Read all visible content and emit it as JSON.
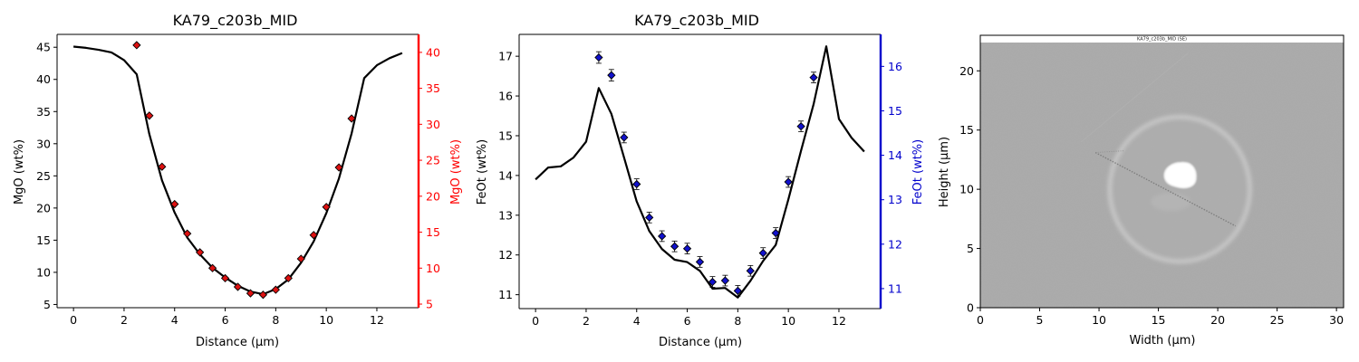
{
  "chart_data": [
    {
      "type": "line+scatter",
      "title": "KA79_c203b_MID",
      "xlabel": "Distance (µm)",
      "ylabel_left": "MgO (wt%)",
      "ylabel_right": "MgO (wt%)",
      "xlim": [
        -0.65,
        13.65
      ],
      "ylim_left": [
        4.5,
        47.0
      ],
      "ylim_right": [
        4.5,
        42.5
      ],
      "x_ticks": [
        0,
        2,
        4,
        6,
        8,
        10,
        12
      ],
      "y_ticks_left": [
        5,
        10,
        15,
        20,
        25,
        30,
        35,
        40,
        45
      ],
      "y_ticks_right": [
        5,
        10,
        15,
        20,
        25,
        30,
        35,
        40
      ],
      "right_axis_color": "#ff0000",
      "marker_color": "#dd1111",
      "series": [
        {
          "axis": "left",
          "style": "line",
          "x": [
            0,
            0.5,
            1,
            1.5,
            2,
            2.5,
            3,
            3.5,
            4,
            4.5,
            5,
            5.5,
            6,
            6.5,
            7,
            7.5,
            8,
            8.5,
            9,
            9.5,
            10,
            10.5,
            11,
            11.5,
            12,
            12.5,
            13
          ],
          "y": [
            45.1,
            44.9,
            44.6,
            44.2,
            43.0,
            40.8,
            31.5,
            24.3,
            19.3,
            15.4,
            12.8,
            10.7,
            9.2,
            7.9,
            7.0,
            6.6,
            7.4,
            8.9,
            11.5,
            14.8,
            19.2,
            24.6,
            31.6,
            40.2,
            42.2,
            43.3,
            44.1
          ]
        },
        {
          "axis": "right",
          "style": "markers",
          "x": [
            2.5,
            3,
            3.5,
            4,
            4.5,
            5,
            5.5,
            6,
            6.5,
            7,
            7.5,
            8,
            8.5,
            9,
            9.5,
            10,
            10.5,
            11
          ],
          "y": [
            41.0,
            31.2,
            24.1,
            18.9,
            14.8,
            12.2,
            10.0,
            8.6,
            7.4,
            6.5,
            6.3,
            7.0,
            8.6,
            11.3,
            14.6,
            18.5,
            24.0,
            30.8
          ]
        }
      ]
    },
    {
      "type": "line+scatter",
      "title": "KA79_c203b_MID",
      "xlabel": "Distance (µm)",
      "ylabel_left": "FeOt (wt%)",
      "ylabel_right": "FeOt (wt%)",
      "xlim": [
        -0.65,
        13.65
      ],
      "ylim_left": [
        10.65,
        17.55
      ],
      "ylim_right": [
        10.55,
        16.72
      ],
      "x_ticks": [
        0,
        2,
        4,
        6,
        8,
        10,
        12
      ],
      "y_ticks_left": [
        11,
        12,
        13,
        14,
        15,
        16,
        17
      ],
      "y_ticks_right": [
        11,
        12,
        13,
        14,
        15,
        16
      ],
      "right_axis_color": "#0000cc",
      "marker_color": "#1111cc",
      "series": [
        {
          "axis": "left",
          "style": "line",
          "x": [
            0,
            0.5,
            1,
            1.5,
            2,
            2.5,
            3,
            3.5,
            4,
            4.5,
            5,
            5.5,
            6,
            6.5,
            7,
            7.5,
            8,
            8.5,
            9,
            9.5,
            10,
            10.5,
            11,
            11.5,
            12,
            12.5,
            13
          ],
          "y": [
            13.9,
            14.2,
            14.23,
            14.45,
            14.85,
            16.2,
            15.55,
            14.45,
            13.35,
            12.6,
            12.15,
            11.88,
            11.82,
            11.6,
            11.15,
            11.17,
            10.93,
            11.35,
            11.85,
            12.25,
            13.4,
            14.62,
            15.8,
            17.25,
            15.42,
            14.95,
            14.6
          ]
        },
        {
          "axis": "right",
          "style": "markers",
          "x": [
            2.5,
            3,
            3.5,
            4,
            4.5,
            5,
            5.5,
            6,
            6.5,
            7,
            7.5,
            8,
            8.5,
            9,
            9.5,
            10,
            10.5,
            11
          ],
          "y": [
            16.2,
            15.8,
            14.4,
            13.35,
            12.6,
            12.18,
            11.95,
            11.9,
            11.6,
            11.15,
            11.18,
            10.95,
            11.4,
            11.8,
            12.25,
            13.4,
            14.65,
            15.75
          ],
          "error": [
            0.13,
            0.13,
            0.12,
            0.12,
            0.12,
            0.12,
            0.12,
            0.12,
            0.12,
            0.12,
            0.12,
            0.12,
            0.12,
            0.12,
            0.12,
            0.12,
            0.12,
            0.12
          ]
        }
      ]
    },
    {
      "type": "image",
      "caption": "KA79_c203b_MID (SE)",
      "xlabel": "Width (µm)",
      "ylabel": "Height (µm)",
      "xlim": [
        0,
        30.6
      ],
      "ylim": [
        0,
        23.0
      ],
      "x_ticks": [
        0,
        5,
        10,
        15,
        20,
        25,
        30
      ],
      "y_ticks": [
        0,
        5,
        10,
        15,
        20
      ],
      "background_color": "#a9a9a9",
      "features": {
        "traverse_start": [
          9.7,
          13.1
        ],
        "traverse_end": [
          21.5,
          6.9
        ],
        "ring_center": [
          16.8,
          10.0
        ],
        "ring_radius": [
          5.9,
          6.1
        ],
        "bright_spot_center": [
          16.8,
          11.2
        ]
      }
    }
  ]
}
